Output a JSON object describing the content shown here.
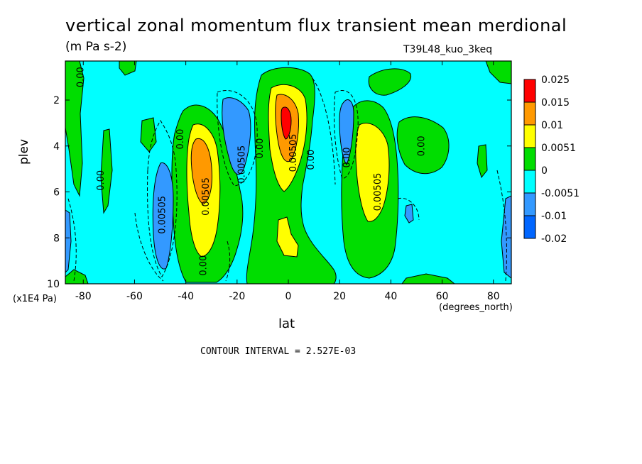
{
  "chart_data": {
    "type": "heatmap",
    "title": "vertical zonal momentum flux transient mean merdional",
    "units": "(m Pa s-2)",
    "run_label": "T39L48_kuo_3keq",
    "xlabel": "lat",
    "x_unit_label": "(degrees_north)",
    "ylabel": "plev",
    "y_unit_label": "(x1E4 Pa)",
    "footer": "CONTOUR INTERVAL = 2.527E-03",
    "xlim": [
      -87,
      87
    ],
    "ylim": [
      10,
      0.3
    ],
    "x_ticks": [
      "-80",
      "-60",
      "-40",
      "-20",
      "0",
      "20",
      "40",
      "60",
      "80"
    ],
    "x_tick_values": [
      -80,
      -60,
      -40,
      -20,
      0,
      20,
      40,
      60,
      80
    ],
    "y_ticks": [
      "2",
      "4",
      "6",
      "8",
      "10"
    ],
    "y_tick_values": [
      2,
      4,
      6,
      8,
      10
    ],
    "legend": {
      "labels": [
        "0.025",
        "0.015",
        "0.01",
        "0.0051",
        "0",
        "-0.0051",
        "-0.01",
        "-0.02"
      ],
      "colors": [
        "#ff0000",
        "#ff9900",
        "#ffff00",
        "#00dd00",
        "#00ffff",
        "#3399ff",
        "#0066ff"
      ]
    },
    "contour_labels": [
      {
        "text": "0.00",
        "lat": -80,
        "plev": 1.0
      },
      {
        "text": "0.00",
        "lat": -72,
        "plev": 5.5
      },
      {
        "text": "0.00505",
        "lat": -48,
        "plev": 7.0
      },
      {
        "text": "0.00",
        "lat": -41,
        "plev": 3.7
      },
      {
        "text": "0.00505",
        "lat": -31,
        "plev": 6.2
      },
      {
        "text": "0.00",
        "lat": -32,
        "plev": 9.2
      },
      {
        "text": "0.00505",
        "lat": -17,
        "plev": 4.8
      },
      {
        "text": "0.00",
        "lat": -10,
        "plev": 4.1
      },
      {
        "text": "0.00505",
        "lat": 3,
        "plev": 4.3
      },
      {
        "text": "0.00",
        "lat": 10,
        "plev": 4.6
      },
      {
        "text": "0.00",
        "lat": 24,
        "plev": 4.5
      },
      {
        "text": "0.00505",
        "lat": 36,
        "plev": 6.0
      },
      {
        "text": "0.00",
        "lat": 53,
        "plev": 4.0
      }
    ],
    "features": [
      {
        "sign": "positive",
        "lat": -36,
        "plev": 5.0,
        "peak": 0.01
      },
      {
        "sign": "positive",
        "lat": 0,
        "plev": 3.0,
        "peak": 0.025
      },
      {
        "sign": "positive",
        "lat": 33,
        "plev": 5.0,
        "peak": 0.01
      },
      {
        "sign": "negative",
        "lat": -50,
        "plev": 6.5,
        "peak": -0.01
      },
      {
        "sign": "negative",
        "lat": -18,
        "plev": 3.5,
        "peak": -0.01
      },
      {
        "sign": "negative",
        "lat": 22,
        "plev": 3.5,
        "peak": -0.01
      },
      {
        "sign": "negative",
        "lat": -86,
        "plev": 8.0,
        "peak": -0.01
      },
      {
        "sign": "negative",
        "lat": 86,
        "plev": 8.5,
        "peak": -0.01
      }
    ]
  }
}
